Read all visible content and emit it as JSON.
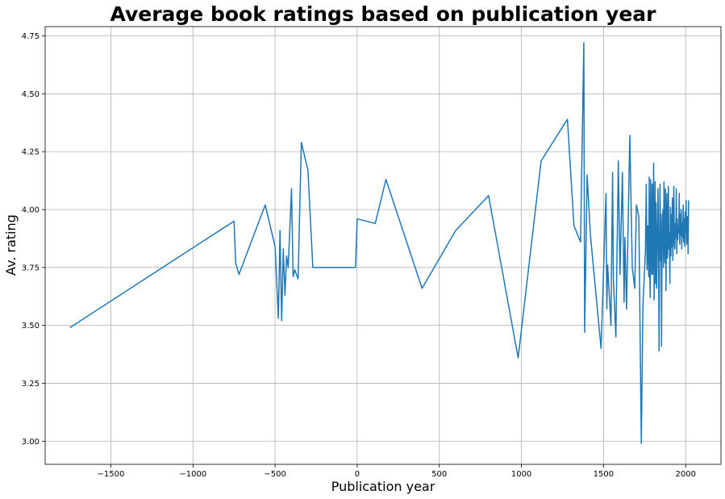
{
  "chart_data": {
    "type": "line",
    "title": "Average book ratings based on publication year",
    "xlabel": "Publication year",
    "ylabel": "Av. rating",
    "xlim": [
      -1900,
      2215
    ],
    "ylim": [
      2.9,
      4.79
    ],
    "x_ticks": [
      -1500,
      -1000,
      -500,
      0,
      500,
      1000,
      1500,
      2000
    ],
    "y_ticks": [
      3.0,
      3.25,
      3.5,
      3.75,
      4.0,
      4.25,
      4.5,
      4.75
    ],
    "x_tick_labels": [
      "−1500",
      "−1000",
      "−500",
      "0",
      "500",
      "1000",
      "1500",
      "2000"
    ],
    "y_tick_labels": [
      "3.00",
      "3.25",
      "3.50",
      "3.75",
      "4.00",
      "4.25",
      "4.50",
      "4.75"
    ],
    "grid": true,
    "line_color": "#1f77b4",
    "series": [
      {
        "x": [
          -1750,
          -750,
          -740,
          -720,
          -560,
          -500,
          -480,
          -470,
          -460,
          -450,
          -440,
          -430,
          -420,
          -400,
          -390,
          -380,
          -360,
          -340,
          -300,
          -270,
          -10,
          0,
          110,
          175,
          395,
          600,
          800,
          980,
          1120,
          1280,
          1320,
          1360,
          1380,
          1385,
          1400,
          1420,
          1485,
          1515,
          1520,
          1525,
          1545,
          1555,
          1560,
          1575,
          1590,
          1600,
          1615,
          1625,
          1630,
          1640,
          1660,
          1675,
          1690,
          1700,
          1715,
          1730,
          1740,
          1755,
          1760,
          1765,
          1770,
          1775,
          1778,
          1781,
          1784,
          1787,
          1790,
          1793,
          1796,
          1799,
          1802,
          1805,
          1808,
          1811,
          1814,
          1817,
          1820,
          1823,
          1826,
          1829,
          1832,
          1835,
          1838,
          1841,
          1844,
          1847,
          1850,
          1853,
          1856,
          1859,
          1862,
          1865,
          1868,
          1871,
          1874,
          1877,
          1880,
          1883,
          1886,
          1889,
          1892,
          1895,
          1898,
          1901,
          1904,
          1907,
          1910,
          1913,
          1916,
          1919,
          1922,
          1925,
          1928,
          1931,
          1934,
          1937,
          1940,
          1943,
          1946,
          1949,
          1952,
          1955,
          1958,
          1961,
          1964,
          1967,
          1970,
          1973,
          1976,
          1979,
          1982,
          1985,
          1988,
          1991,
          1994,
          1997,
          2000,
          2003,
          2006,
          2009,
          2012,
          2015,
          2018
        ],
        "y": [
          3.49,
          3.95,
          3.77,
          3.72,
          4.02,
          3.84,
          3.53,
          3.91,
          3.52,
          3.83,
          3.63,
          3.8,
          3.75,
          4.09,
          3.71,
          3.74,
          3.7,
          4.29,
          4.17,
          3.75,
          3.75,
          3.96,
          3.94,
          4.13,
          3.66,
          3.91,
          4.06,
          3.36,
          4.21,
          4.39,
          3.93,
          3.86,
          4.72,
          3.47,
          4.15,
          3.89,
          3.4,
          4.07,
          3.57,
          3.76,
          3.5,
          4.16,
          3.7,
          3.45,
          4.21,
          3.72,
          4.16,
          3.6,
          3.88,
          3.57,
          4.32,
          3.75,
          3.66,
          4.02,
          3.97,
          2.99,
          3.59,
          3.82,
          4.11,
          3.74,
          3.93,
          3.71,
          4.14,
          3.73,
          3.62,
          4.13,
          3.86,
          3.72,
          4.11,
          3.72,
          3.85,
          4.2,
          3.61,
          3.81,
          4.12,
          3.68,
          4.03,
          3.66,
          3.77,
          3.95,
          4.09,
          3.8,
          3.39,
          3.85,
          4.11,
          3.78,
          3.98,
          3.41,
          3.81,
          3.96,
          4.0,
          3.75,
          4.12,
          3.88,
          3.77,
          4.09,
          3.65,
          3.92,
          4.07,
          3.79,
          3.85,
          4.1,
          3.83,
          3.9,
          3.68,
          4.01,
          3.8,
          3.98,
          3.84,
          4.05,
          3.78,
          3.92,
          4.1,
          3.86,
          3.83,
          3.94,
          3.88,
          4.09,
          3.81,
          3.96,
          3.87,
          3.93,
          3.9,
          4.07,
          3.85,
          3.98,
          3.89,
          4.0,
          3.83,
          3.94,
          3.88,
          4.02,
          3.86,
          3.96,
          3.84,
          3.99,
          3.9,
          4.04,
          3.85,
          3.92,
          3.97,
          3.81,
          4.04
        ]
      }
    ]
  }
}
